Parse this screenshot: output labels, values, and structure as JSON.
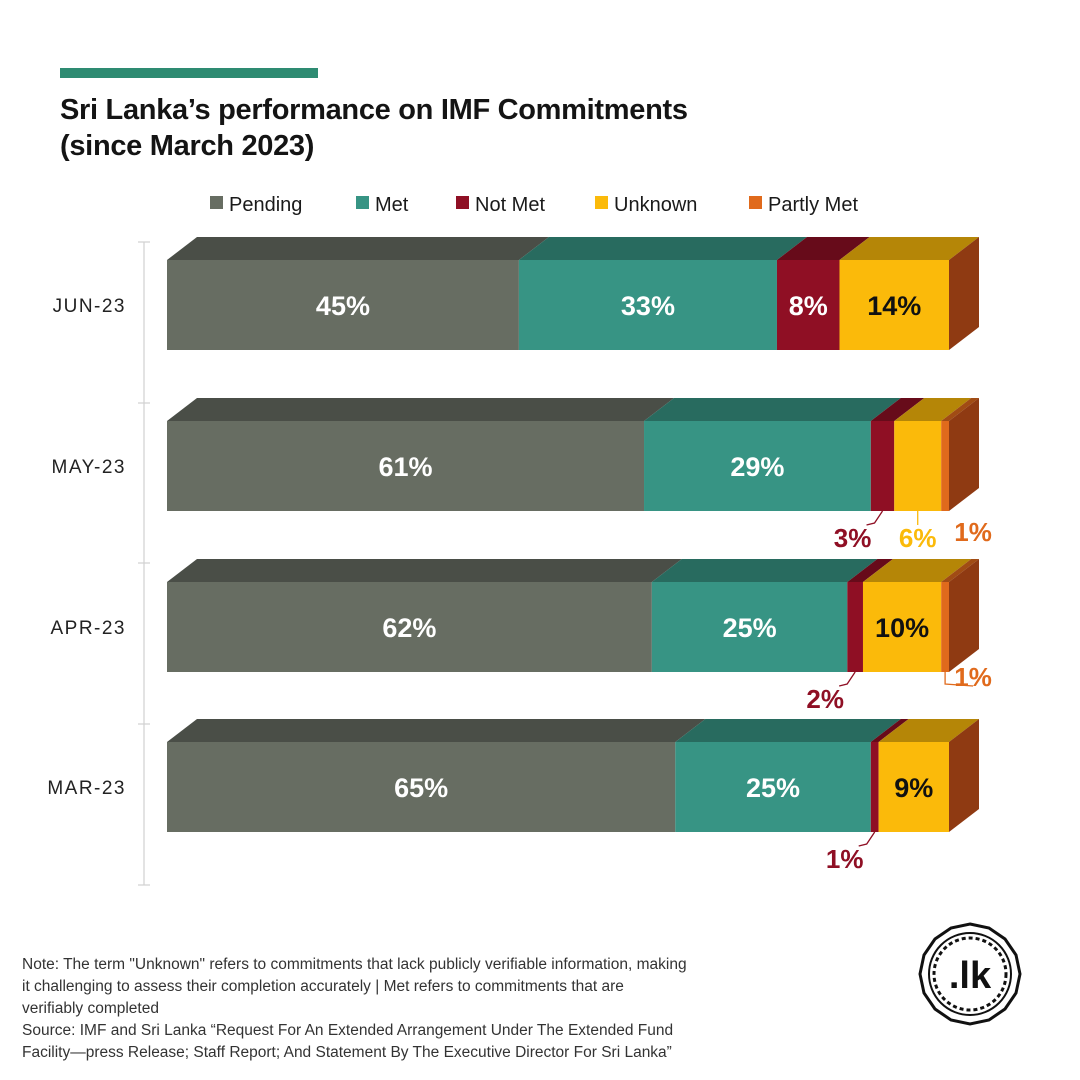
{
  "title_line1": "Sri Lanka’s performance on IMF Commitments",
  "title_line2": "(since March 2023)",
  "colors": {
    "accent": "#2e8b72",
    "pending": "#676d62",
    "met": "#379484",
    "not_met": "#8f0f24",
    "unknown": "#fbba0a",
    "partly_met": "#e06a1c"
  },
  "chart_data": {
    "type": "bar",
    "orientation": "horizontal",
    "stacked": true,
    "categories": [
      "JUN-23",
      "MAY-23",
      "APR-23",
      "MAR-23"
    ],
    "series": [
      {
        "name": "Pending",
        "values": [
          45,
          61,
          62,
          65
        ]
      },
      {
        "name": "Met",
        "values": [
          33,
          29,
          25,
          25
        ]
      },
      {
        "name": "Not Met",
        "values": [
          8,
          3,
          2,
          1
        ]
      },
      {
        "name": "Unknown",
        "values": [
          14,
          6,
          10,
          9
        ]
      },
      {
        "name": "Partly Met",
        "values": [
          0,
          1,
          1,
          0
        ]
      }
    ],
    "unit": "%",
    "xlim": [
      0,
      100
    ],
    "legend_position": "top",
    "grid": false,
    "data_labels": true
  },
  "note_lines": [
    "Note: The term \"Unknown\" refers to commitments that lack publicly verifiable information, making",
    "it challenging to assess their completion accurately | Met refers to commitments that are",
    "verifiably completed",
    "Source: IMF and Sri Lanka “Request For An Extended Arrangement Under The Extended Fund",
    "Facility—press Release; Staff Report; And Statement By The Executive Director For Sri Lanka”"
  ],
  "logo": {
    "text": ".lk",
    "icon": "lk-logo-icon"
  }
}
